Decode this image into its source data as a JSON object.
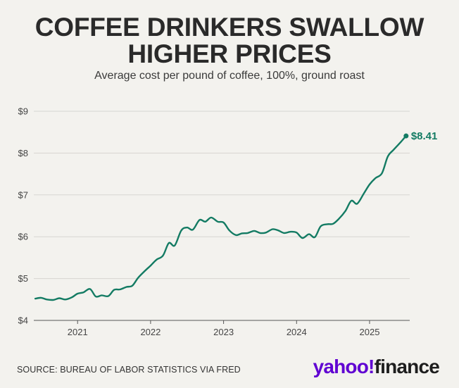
{
  "header": {
    "title_line1": "COFFEE DRINKERS SWALLOW",
    "title_line2": "HIGHER PRICES",
    "subtitle": "Average cost per pound of coffee, 100%, ground roast"
  },
  "footer": {
    "source": "SOURCE: BUREAU OF LABOR STATISTICS VIA FRED",
    "logo_part1": "yahoo",
    "logo_mark": "!",
    "logo_part2": "finance"
  },
  "colors": {
    "line": "#137b63",
    "grid": "#d6d5d1",
    "axis": "#555555",
    "background": "#f3f2ee",
    "logo_purple": "#6001d2"
  },
  "chart_data": {
    "type": "line",
    "title": "COFFEE DRINKERS SWALLOW HIGHER PRICES",
    "subtitle": "Average cost per pound of coffee, 100%, ground roast",
    "xlabel": "",
    "ylabel": "",
    "ylim": [
      4,
      9
    ],
    "xlim": [
      2020.4,
      2025.55
    ],
    "y_ticks": [
      4,
      5,
      6,
      7,
      8,
      9
    ],
    "y_tick_labels": [
      "$4",
      "$5",
      "$6",
      "$7",
      "$8",
      "$9"
    ],
    "x_ticks": [
      2021,
      2022,
      2023,
      2024,
      2025
    ],
    "x_tick_labels": [
      "2021",
      "2022",
      "2023",
      "2024",
      "2025"
    ],
    "grid": "horizontal",
    "end_label": "$8.41",
    "series": [
      {
        "name": "Average cost per pound of coffee",
        "x": [
          2020.42,
          2020.5,
          2020.58,
          2020.67,
          2020.75,
          2020.83,
          2020.92,
          2021.0,
          2021.08,
          2021.17,
          2021.25,
          2021.33,
          2021.42,
          2021.5,
          2021.58,
          2021.67,
          2021.75,
          2021.83,
          2021.92,
          2022.0,
          2022.08,
          2022.17,
          2022.25,
          2022.33,
          2022.42,
          2022.5,
          2022.58,
          2022.67,
          2022.75,
          2022.83,
          2022.92,
          2023.0,
          2023.08,
          2023.17,
          2023.25,
          2023.33,
          2023.42,
          2023.5,
          2023.58,
          2023.67,
          2023.75,
          2023.83,
          2023.92,
          2024.0,
          2024.08,
          2024.17,
          2024.25,
          2024.33,
          2024.42,
          2024.5,
          2024.58,
          2024.67,
          2024.75,
          2024.83,
          2024.92,
          2025.0,
          2025.08,
          2025.17,
          2025.25,
          2025.33,
          2025.42,
          2025.5
        ],
        "values": [
          4.52,
          4.54,
          4.5,
          4.49,
          4.53,
          4.5,
          4.55,
          4.64,
          4.67,
          4.75,
          4.57,
          4.6,
          4.58,
          4.73,
          4.74,
          4.8,
          4.83,
          5.02,
          5.18,
          5.31,
          5.45,
          5.55,
          5.85,
          5.79,
          6.15,
          6.22,
          6.17,
          6.4,
          6.36,
          6.46,
          6.36,
          6.34,
          6.15,
          6.04,
          6.08,
          6.09,
          6.14,
          6.09,
          6.1,
          6.18,
          6.15,
          6.09,
          6.12,
          6.1,
          5.97,
          6.06,
          5.99,
          6.25,
          6.3,
          6.31,
          6.43,
          6.62,
          6.86,
          6.79,
          7.03,
          7.25,
          7.4,
          7.52,
          7.92,
          8.08,
          8.25,
          8.41
        ]
      }
    ]
  }
}
